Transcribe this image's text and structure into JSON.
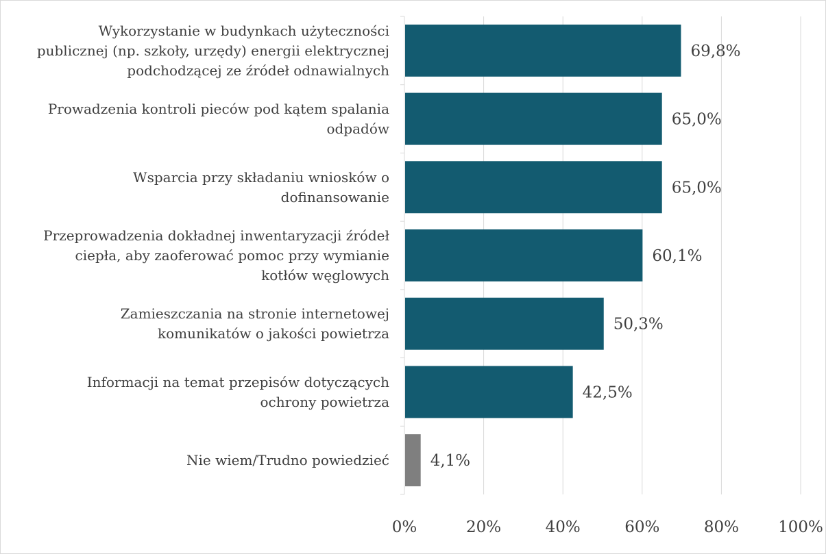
{
  "chart_data": {
    "type": "bar",
    "orientation": "horizontal",
    "categories": [
      "Wykorzystanie w budynkach użyteczności publicznej (np. szkoły, urzędy) energii elektrycznej podchodzącej ze źródeł odnawialnych",
      "Prowadzenia kontroli pieców pod kątem spalania odpadów",
      "Wsparcia przy składaniu wniosków o dofinansowanie",
      "Przeprowadzenia dokładnej inwentaryzacji źródeł ciepła, aby zaoferować pomoc przy wymianie kotłów węglowych",
      "Zamieszczania na stronie internetowej komunikatów o jakości powietrza",
      "Informacji na temat przepisów dotyczących ochrony powietrza",
      "Nie wiem/Trudno powiedzieć"
    ],
    "category_lines": [
      [
        "Wykorzystanie w budynkach użyteczności",
        "publicznej (np. szkoły, urzędy) energii elektrycznej",
        "podchodzącej ze źródeł odnawialnych"
      ],
      [
        "Prowadzenia kontroli pieców pod kątem spalania",
        "odpadów"
      ],
      [
        "Wsparcia przy składaniu wniosków o",
        "dofinansowanie"
      ],
      [
        "Przeprowadzenia dokładnej inwentaryzacji źródeł",
        "ciepła, aby zaoferować pomoc przy wymianie",
        "kotłów węglowych"
      ],
      [
        "Zamieszczania na stronie internetowej",
        "komunikatów o jakości powietrza"
      ],
      [
        "Informacji na temat przepisów dotyczących",
        "ochrony powietrza"
      ],
      [
        "Nie wiem/Trudno powiedzieć"
      ]
    ],
    "values": [
      69.8,
      65.0,
      65.0,
      60.1,
      50.3,
      42.5,
      4.1
    ],
    "value_labels": [
      "69,8%",
      "65,0%",
      "65,0%",
      "60,1%",
      "50,3%",
      "42,5%",
      "4,1%"
    ],
    "bar_colors": [
      "#135b70",
      "#135b70",
      "#135b70",
      "#135b70",
      "#135b70",
      "#135b70",
      "#7f7f7f"
    ],
    "xlim": [
      0,
      100
    ],
    "x_ticks": [
      0,
      20,
      40,
      60,
      80,
      100
    ],
    "x_tick_labels": [
      "0%",
      "20%",
      "40%",
      "60%",
      "80%",
      "100%"
    ],
    "grid": true,
    "grid_color": "#d9d9d9",
    "legend": false
  }
}
